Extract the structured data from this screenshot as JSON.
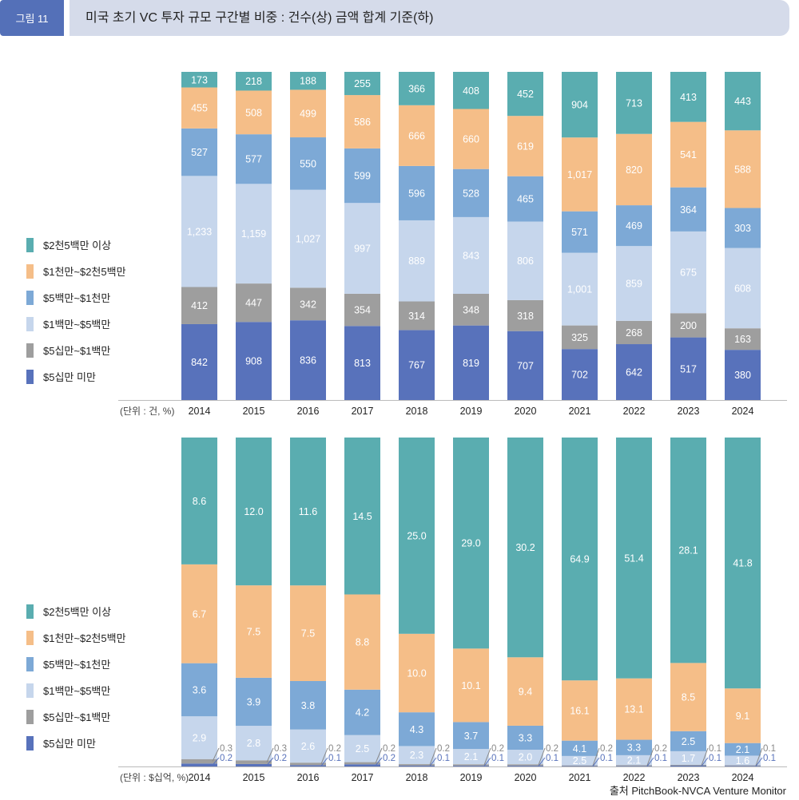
{
  "header": {
    "figure_label": "그림 11",
    "title": "미국 초기 VC 투자 규모 구간별 비중 : 건수(상) 금액 합계 기준(하)"
  },
  "colors": {
    "s1": "#5aadb0",
    "s2": "#f5be88",
    "s3": "#7da9d6",
    "s4": "#c6d6ec",
    "s5": "#9e9e9e",
    "s6": "#5872bb"
  },
  "chart_data": [
    {
      "type": "bar",
      "stacked": true,
      "unit_label": "(단위 : 건, %)",
      "categories": [
        "2014",
        "2015",
        "2016",
        "2017",
        "2018",
        "2019",
        "2020",
        "2021",
        "2022",
        "2023",
        "2024"
      ],
      "legend_position": "left",
      "series": [
        {
          "name": "$2천5백만 이상",
          "labels": [
            "173",
            "218",
            "188",
            "255",
            "366",
            "408",
            "452",
            "904",
            "713",
            "413",
            "443"
          ]
        },
        {
          "name": "$1천만~$2천5백만",
          "labels": [
            "455",
            "508",
            "499",
            "586",
            "666",
            "660",
            "619",
            "1,017",
            "820",
            "541",
            "588"
          ]
        },
        {
          "name": "$5백만~$1천만",
          "labels": [
            "527",
            "577",
            "550",
            "599",
            "596",
            "528",
            "465",
            "571",
            "469",
            "364",
            "303"
          ]
        },
        {
          "name": "$1백만~$5백만",
          "labels": [
            "1,233",
            "1,159",
            "1,027",
            "997",
            "889",
            "843",
            "806",
            "1,001",
            "859",
            "675",
            "608"
          ]
        },
        {
          "name": "$5십만~$1백만",
          "labels": [
            "412",
            "447",
            "342",
            "354",
            "314",
            "348",
            "318",
            "325",
            "268",
            "200",
            "163"
          ]
        },
        {
          "name": "$5십만 미만",
          "labels": [
            "842",
            "908",
            "836",
            "813",
            "767",
            "819",
            "707",
            "702",
            "642",
            "517",
            "380"
          ]
        }
      ]
    },
    {
      "type": "bar",
      "stacked": true,
      "unit_label": "(단위 : $십억, %)",
      "categories": [
        "2014",
        "2015",
        "2016",
        "2017",
        "2018",
        "2019",
        "2020",
        "2021",
        "2022",
        "2023",
        "2024"
      ],
      "legend_position": "left",
      "series": [
        {
          "name": "$2천5백만 이상",
          "labels": [
            "8.6",
            "12.0",
            "11.6",
            "14.5",
            "25.0",
            "29.0",
            "30.2",
            "64.9",
            "51.4",
            "28.1",
            "41.8"
          ]
        },
        {
          "name": "$1천만~$2천5백만",
          "labels": [
            "6.7",
            "7.5",
            "7.5",
            "8.8",
            "10.0",
            "10.1",
            "9.4",
            "16.1",
            "13.1",
            "8.5",
            "9.1"
          ]
        },
        {
          "name": "$5백만~$1천만",
          "labels": [
            "3.6",
            "3.9",
            "3.8",
            "4.2",
            "4.3",
            "3.7",
            "3.3",
            "4.1",
            "3.3",
            "2.5",
            "2.1"
          ]
        },
        {
          "name": "$1백만~$5백만",
          "labels": [
            "2.9",
            "2.8",
            "2.6",
            "2.5",
            "2.3",
            "2.1",
            "2.0",
            "2.5",
            "2.1",
            "1.7",
            "1.6"
          ]
        },
        {
          "name": "$5십만~$1백만",
          "labels": [
            "0.3",
            "0.3",
            "0.2",
            "0.2",
            "0.2",
            "0.2",
            "0.2",
            "0.2",
            "0.2",
            "0.1",
            "0.1"
          ]
        },
        {
          "name": "$5십만 미만",
          "labels": [
            "0.2",
            "0.2",
            "0.1",
            "0.2",
            "0.1",
            "0.1",
            "0.1",
            "0.1",
            "0.1",
            "0.1",
            "0.1"
          ]
        }
      ]
    }
  ],
  "source": "출처 PitchBook-NVCA Venture Monitor"
}
